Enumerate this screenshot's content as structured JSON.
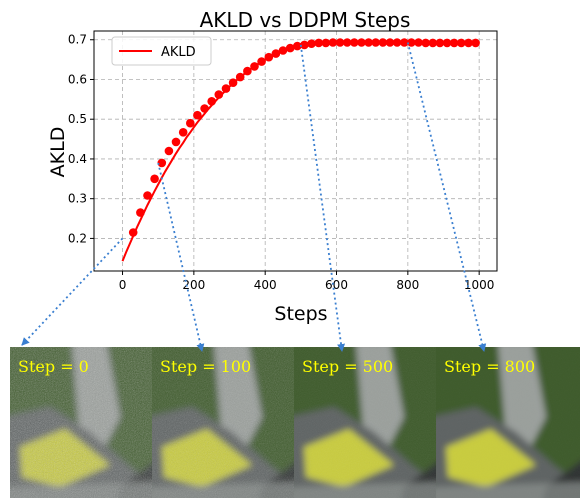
{
  "chart_data": {
    "type": "line",
    "title": "AKLD vs DDPM Steps",
    "xlabel": "Steps",
    "ylabel": "AKLD",
    "xlim": [
      -80,
      1050
    ],
    "ylim": [
      0.118,
      0.722
    ],
    "xticks": [
      0,
      200,
      400,
      600,
      800,
      1000
    ],
    "yticks": [
      0.2,
      0.3,
      0.4,
      0.5,
      0.6,
      0.7
    ],
    "xtick_labels": [
      "0",
      "200",
      "400",
      "600",
      "800",
      "1000"
    ],
    "ytick_labels": [
      "0.2",
      "0.3",
      "0.4",
      "0.5",
      "0.6",
      "0.7"
    ],
    "grid": true,
    "legend": {
      "position": "top-left",
      "entries": [
        "AKLD"
      ]
    },
    "series": [
      {
        "name": "AKLD",
        "color": "#ff0000",
        "x": [
          0,
          10,
          20,
          30,
          40,
          50,
          60,
          70,
          80,
          90,
          100,
          110,
          120,
          130,
          140,
          150,
          160,
          170,
          180,
          190,
          200,
          210,
          220,
          230,
          240,
          250,
          260,
          270,
          280,
          290,
          300,
          310,
          320,
          330,
          340,
          350,
          360,
          370,
          380,
          390,
          400,
          410,
          420,
          430,
          440,
          450,
          460,
          470,
          480,
          490,
          500,
          510,
          520,
          530,
          540,
          550,
          560,
          570,
          580,
          590,
          600,
          610,
          620,
          630,
          640,
          650,
          660,
          670,
          680,
          690,
          700,
          710,
          720,
          730,
          740,
          750,
          760,
          770,
          780,
          790,
          800,
          810,
          820,
          830,
          840,
          850,
          860,
          870,
          880,
          890,
          900,
          910,
          920,
          930,
          940,
          950,
          960,
          970,
          980,
          990,
          1000
        ],
        "y": [
          0.143,
          0.165,
          0.186,
          0.206,
          0.227,
          0.246,
          0.265,
          0.284,
          0.302,
          0.319,
          0.336,
          0.353,
          0.369,
          0.384,
          0.399,
          0.414,
          0.428,
          0.441,
          0.455,
          0.467,
          0.48,
          0.492,
          0.503,
          0.514,
          0.525,
          0.535,
          0.545,
          0.555,
          0.564,
          0.573,
          0.582,
          0.59,
          0.598,
          0.606,
          0.613,
          0.62,
          0.627,
          0.633,
          0.639,
          0.645,
          0.65,
          0.655,
          0.66,
          0.664,
          0.668,
          0.672,
          0.675,
          0.678,
          0.681,
          0.683,
          0.685,
          0.687,
          0.689,
          0.69,
          0.691,
          0.692,
          0.692,
          0.693,
          0.693,
          0.693,
          0.693,
          0.693,
          0.693,
          0.693,
          0.693,
          0.693,
          0.693,
          0.693,
          0.693,
          0.693,
          0.693,
          0.693,
          0.693,
          0.693,
          0.693,
          0.693,
          0.693,
          0.693,
          0.693,
          0.693,
          0.693,
          0.693,
          0.693,
          0.693,
          0.693,
          0.693,
          0.693,
          0.693,
          0.693,
          0.693,
          0.693,
          0.693,
          0.693,
          0.693,
          0.693,
          0.693,
          0.693,
          0.693,
          0.693,
          0.693,
          0.693
        ],
        "marker_x": [
          30,
          50,
          70,
          90,
          110,
          130,
          150,
          170,
          190,
          210,
          230,
          250,
          270,
          290,
          310,
          330,
          350,
          370,
          390,
          410,
          430,
          450,
          470,
          490,
          510,
          530,
          550,
          570,
          590,
          610,
          630,
          650,
          670,
          690,
          710,
          730,
          750,
          770,
          790,
          810,
          830,
          850,
          870,
          890,
          910,
          930,
          950,
          970,
          990
        ],
        "marker_y": [
          0.215,
          0.265,
          0.308,
          0.35,
          0.39,
          0.42,
          0.443,
          0.467,
          0.49,
          0.51,
          0.527,
          0.545,
          0.562,
          0.577,
          0.592,
          0.606,
          0.621,
          0.633,
          0.645,
          0.656,
          0.665,
          0.673,
          0.679,
          0.684,
          0.687,
          0.69,
          0.692,
          0.692,
          0.693,
          0.693,
          0.693,
          0.693,
          0.693,
          0.693,
          0.693,
          0.693,
          0.693,
          0.693,
          0.693,
          0.693,
          0.693,
          0.692,
          0.692,
          0.692,
          0.692,
          0.692,
          0.692,
          0.692,
          0.692
        ]
      }
    ],
    "annotations": [
      {
        "step": 0,
        "value": 0.2
      },
      {
        "step": 100,
        "value": 0.39
      },
      {
        "step": 500,
        "value": 0.687
      },
      {
        "step": 800,
        "value": 0.693
      }
    ]
  },
  "panels": [
    {
      "label": "Step = 0"
    },
    {
      "label": "Step = 100"
    },
    {
      "label": "Step = 500"
    },
    {
      "label": "Step = 800"
    }
  ],
  "colors": {
    "line": "#ff0000",
    "arrow": "#3a7fd0",
    "grid": "#b0b0b0",
    "label_text": "#ffff00",
    "panel_bg": "#3d5a2c",
    "cushion": "#c9cc3c"
  }
}
